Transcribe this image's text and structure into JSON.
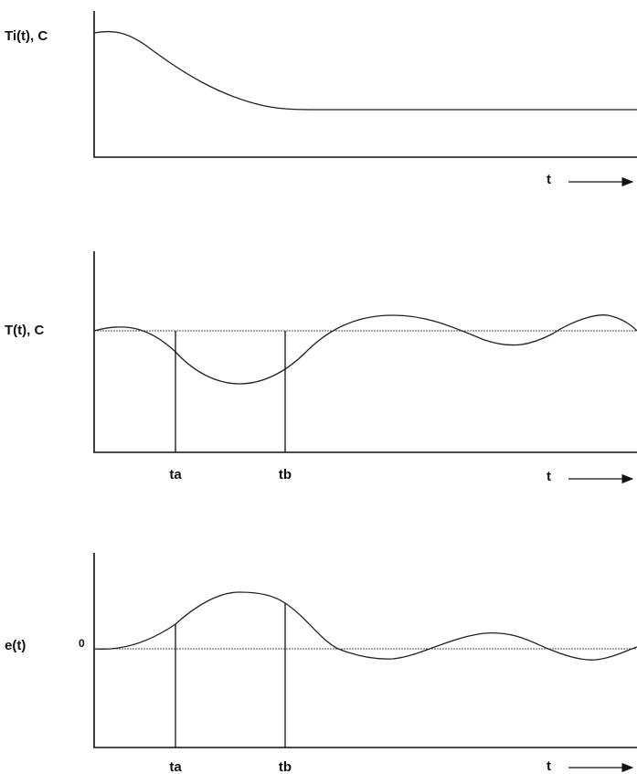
{
  "panels": [
    {
      "y_label": "Ti(t), C",
      "x_label": "t"
    },
    {
      "y_label": "T(t), C",
      "x_label": "t",
      "markers": [
        "ta",
        "tb"
      ]
    },
    {
      "y_label": "e(t)",
      "zero_label": "0",
      "x_label": "t",
      "markers": [
        "ta",
        "tb"
      ]
    }
  ]
}
